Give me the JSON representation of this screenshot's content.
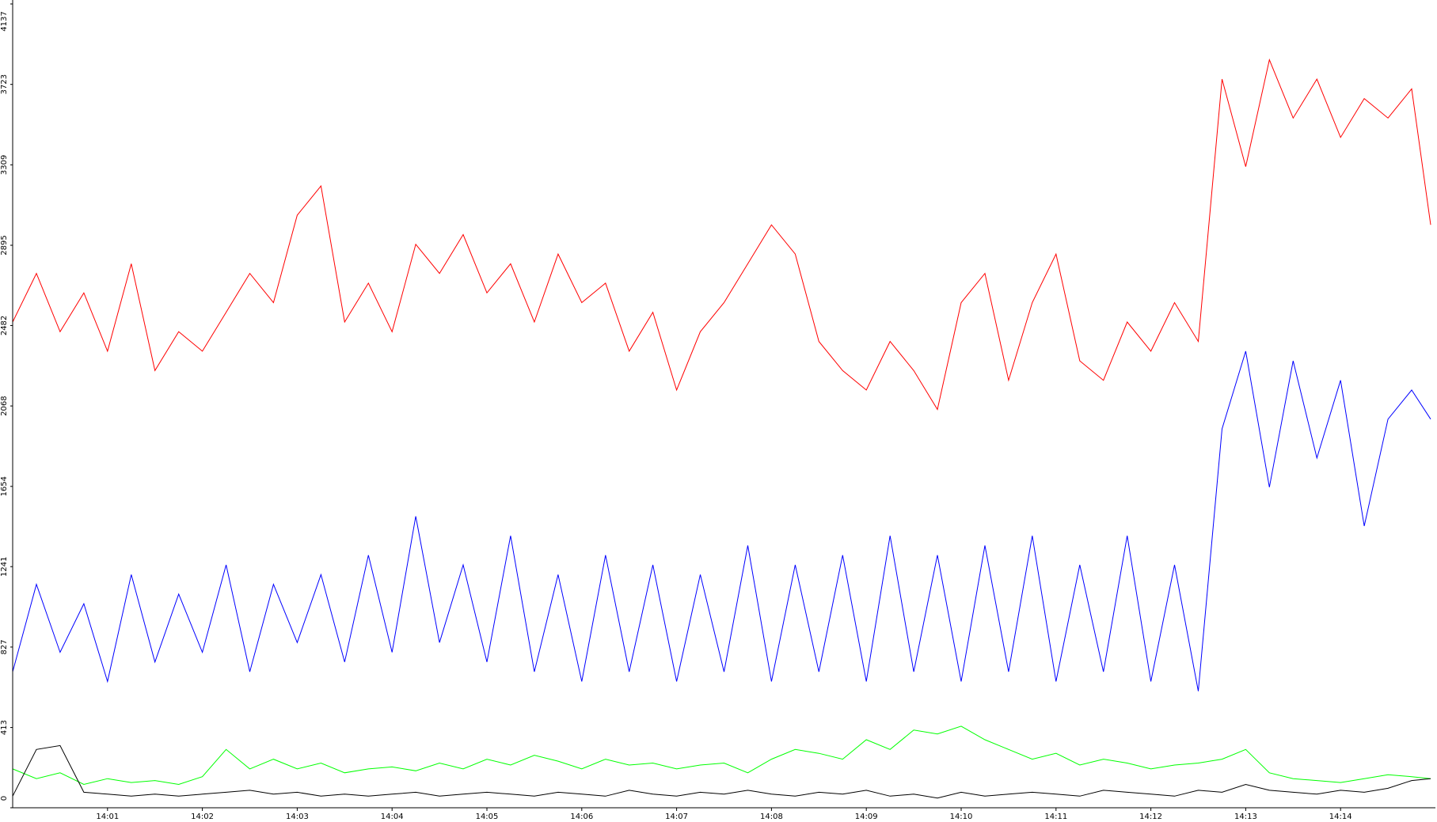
{
  "chart_data": {
    "type": "line",
    "x": [
      0,
      0.25,
      0.5,
      0.75,
      1,
      1.25,
      1.5,
      1.75,
      2,
      2.25,
      2.5,
      2.75,
      3,
      3.25,
      3.5,
      3.75,
      4,
      4.25,
      4.5,
      4.75,
      5,
      5.25,
      5.5,
      5.75,
      6,
      6.25,
      6.5,
      6.75,
      7,
      7.25,
      7.5,
      7.75,
      8,
      8.25,
      8.5,
      8.75,
      9,
      9.25,
      9.5,
      9.75,
      10,
      10.25,
      10.5,
      10.75,
      11,
      11.25,
      11.5,
      11.75,
      12,
      12.25,
      12.5,
      12.75,
      13,
      13.25,
      13.5,
      13.75,
      14,
      14.25,
      14.5,
      14.75,
      14.95
    ],
    "xlim": [
      0,
      15
    ],
    "xticks": [
      {
        "value": 1,
        "label": "14:01"
      },
      {
        "value": 2,
        "label": "14:02"
      },
      {
        "value": 3,
        "label": "14:03"
      },
      {
        "value": 4,
        "label": "14:04"
      },
      {
        "value": 5,
        "label": "14:05"
      },
      {
        "value": 6,
        "label": "14:06"
      },
      {
        "value": 7,
        "label": "14:07"
      },
      {
        "value": 8,
        "label": "14:08"
      },
      {
        "value": 9,
        "label": "14:09"
      },
      {
        "value": 10,
        "label": "14:10"
      },
      {
        "value": 11,
        "label": "14:11"
      },
      {
        "value": 12,
        "label": "14:12"
      },
      {
        "value": 13,
        "label": "14:13"
      },
      {
        "value": 14,
        "label": "14:14"
      }
    ],
    "ylim": [
      0,
      4137
    ],
    "yticks": [
      0,
      413,
      827,
      1241,
      1654,
      2068,
      2482,
      2895,
      3309,
      3723,
      4137
    ],
    "grid": false,
    "series": [
      {
        "color": "#ff0000",
        "values": [
          2500,
          2750,
          2450,
          2650,
          2350,
          2800,
          2250,
          2450,
          2350,
          2550,
          2750,
          2600,
          3050,
          3200,
          2500,
          2700,
          2450,
          2900,
          2750,
          2950,
          2650,
          2800,
          2500,
          2850,
          2600,
          2700,
          2350,
          2550,
          2150,
          2450,
          2600,
          2800,
          3000,
          2850,
          2400,
          2250,
          2150,
          2400,
          2250,
          2050,
          2600,
          2750,
          2200,
          2600,
          2850,
          2300,
          2200,
          2500,
          2350,
          2600,
          2400,
          3750,
          3300,
          3850,
          3550,
          3750,
          3450,
          3650,
          3550,
          3700,
          3000
        ]
      },
      {
        "color": "#0000ff",
        "values": [
          700,
          1150,
          800,
          1050,
          650,
          1200,
          750,
          1100,
          800,
          1250,
          700,
          1150,
          850,
          1200,
          750,
          1300,
          800,
          1500,
          850,
          1250,
          750,
          1400,
          700,
          1200,
          650,
          1300,
          700,
          1250,
          650,
          1200,
          700,
          1350,
          650,
          1250,
          700,
          1300,
          650,
          1400,
          700,
          1300,
          650,
          1350,
          700,
          1400,
          650,
          1250,
          700,
          1400,
          650,
          1250,
          600,
          1950,
          2350,
          1650,
          2300,
          1800,
          2200,
          1450,
          2000,
          2150,
          2000
        ]
      },
      {
        "color": "#00ff00",
        "values": [
          200,
          150,
          180,
          120,
          150,
          130,
          140,
          120,
          160,
          300,
          200,
          250,
          200,
          230,
          180,
          200,
          210,
          190,
          230,
          200,
          250,
          220,
          270,
          240,
          200,
          250,
          220,
          230,
          200,
          220,
          230,
          180,
          250,
          300,
          280,
          250,
          350,
          300,
          400,
          380,
          420,
          350,
          300,
          250,
          280,
          220,
          250,
          230,
          200,
          220,
          230,
          250,
          300,
          180,
          150,
          140,
          130,
          150,
          170,
          160,
          150
        ]
      },
      {
        "color": "#000000",
        "values": [
          60,
          300,
          320,
          80,
          70,
          60,
          70,
          60,
          70,
          80,
          90,
          70,
          80,
          60,
          70,
          60,
          70,
          80,
          60,
          70,
          80,
          70,
          60,
          80,
          70,
          60,
          90,
          70,
          60,
          80,
          70,
          90,
          70,
          60,
          80,
          70,
          90,
          60,
          70,
          50,
          80,
          60,
          70,
          80,
          70,
          60,
          90,
          80,
          70,
          60,
          90,
          80,
          120,
          90,
          80,
          70,
          90,
          80,
          100,
          140,
          150
        ]
      }
    ]
  }
}
